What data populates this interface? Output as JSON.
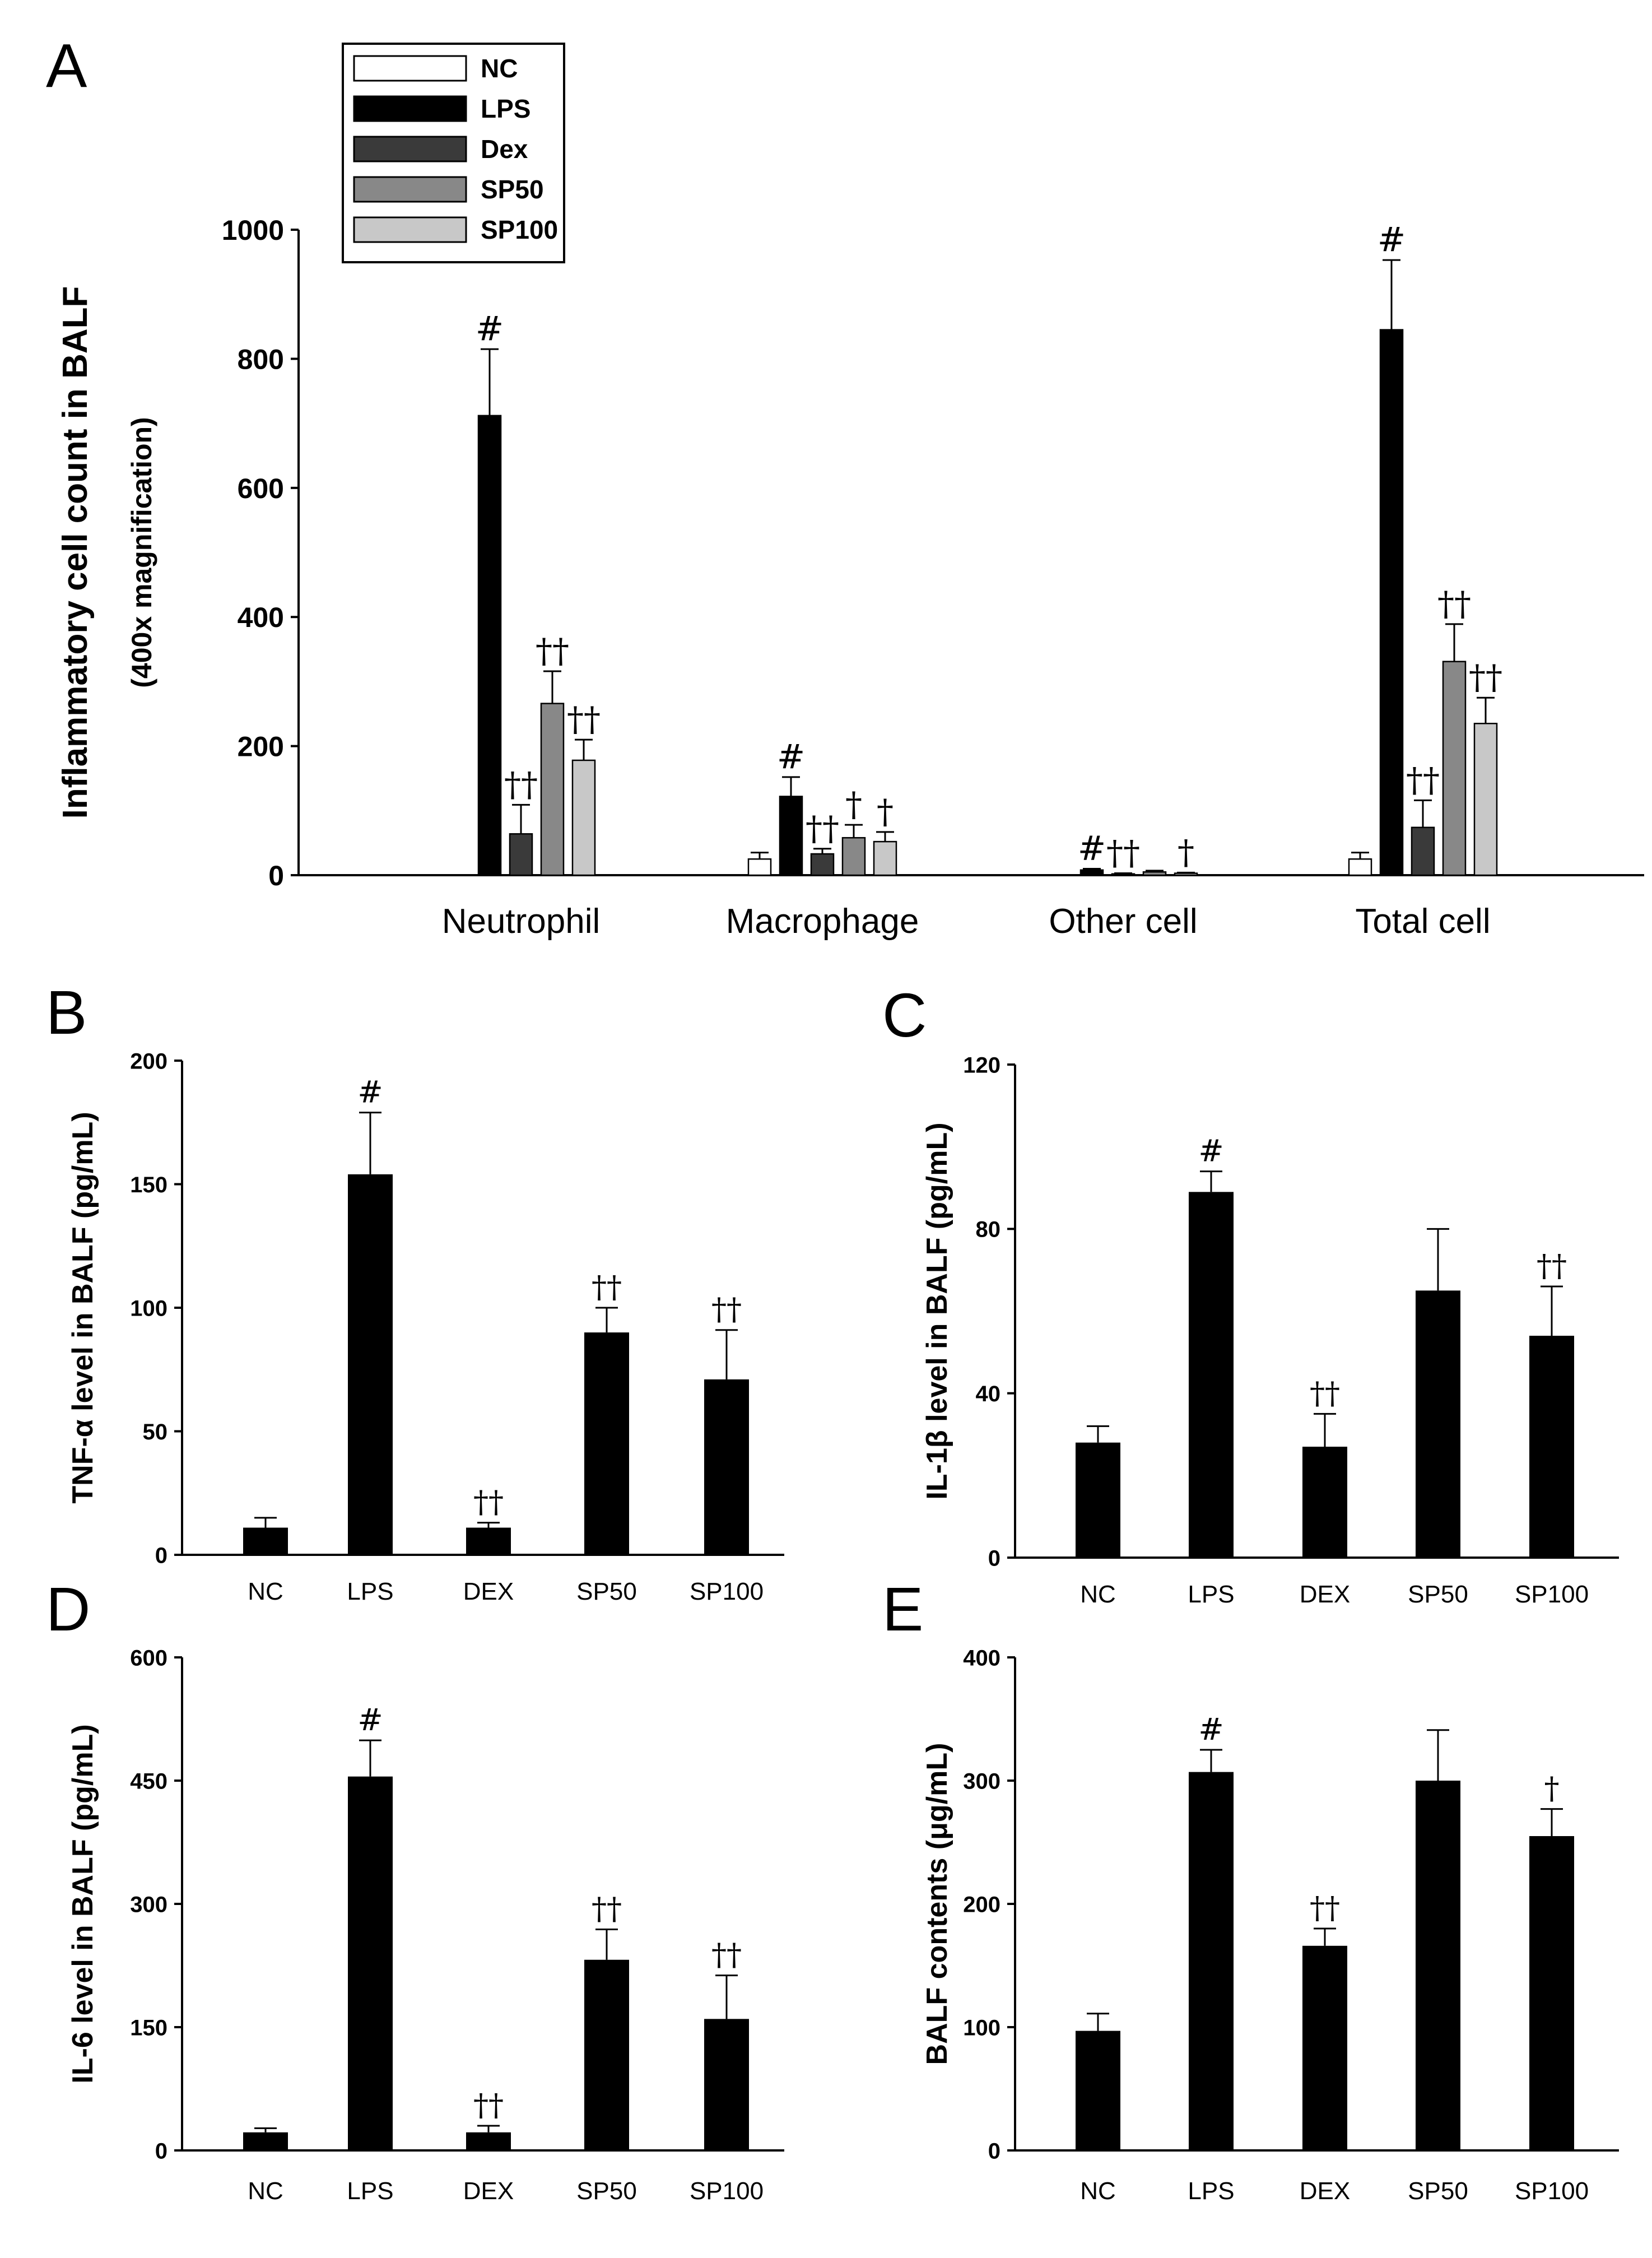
{
  "chart_data": [
    {
      "id": "A",
      "type": "bar",
      "panel_label": "A",
      "ylabel": "Inflammatory cell count in BALF",
      "ylabel2": "(400x magnification)",
      "ylim": [
        0,
        1000
      ],
      "yticks": [
        0,
        200,
        400,
        600,
        800,
        1000
      ],
      "categories": [
        "Neutrophil",
        "Macrophage",
        "Other cell",
        "Total cell"
      ],
      "legend": {
        "position": "top-left",
        "entries": [
          "NC",
          "LPS",
          "Dex",
          "SP50",
          "SP100"
        ]
      },
      "series": [
        {
          "name": "NC",
          "color": "#ffffff",
          "values": [
            0,
            25,
            0,
            25
          ],
          "errors": [
            0,
            10,
            0,
            10
          ],
          "marks": [
            "",
            "",
            "",
            ""
          ]
        },
        {
          "name": "LPS",
          "color": "#000000",
          "values": [
            712,
            122,
            8,
            845
          ],
          "errors": [
            103,
            30,
            2,
            108
          ],
          "marks": [
            "#",
            "#",
            "#",
            "#"
          ]
        },
        {
          "name": "Dex",
          "color": "#3a3a3a",
          "values": [
            64,
            33,
            2,
            74
          ],
          "errors": [
            45,
            8,
            1,
            42
          ],
          "marks": [
            "††",
            "††",
            "††",
            "††"
          ]
        },
        {
          "name": "SP50",
          "color": "#888888",
          "values": [
            266,
            58,
            5,
            331
          ],
          "errors": [
            50,
            20,
            2,
            58
          ],
          "marks": [
            "††",
            "†",
            "",
            "††"
          ]
        },
        {
          "name": "SP100",
          "color": "#c8c8c8",
          "values": [
            178,
            52,
            3,
            235
          ],
          "errors": [
            32,
            15,
            1,
            40
          ],
          "marks": [
            "††",
            "†",
            "†",
            "††"
          ]
        }
      ]
    },
    {
      "id": "B",
      "type": "bar",
      "panel_label": "B",
      "ylabel": "TNF-α level in BALF (pg/mL)",
      "ylim": [
        0,
        200
      ],
      "yticks": [
        0,
        50,
        100,
        150,
        200
      ],
      "categories": [
        "NC",
        "LPS",
        "DEX",
        "SP50",
        "SP100"
      ],
      "values": [
        11,
        154,
        11,
        90,
        71
      ],
      "errors": [
        4,
        25,
        2,
        10,
        20
      ],
      "marks": [
        "",
        "#",
        "††",
        "††",
        "††"
      ]
    },
    {
      "id": "C",
      "type": "bar",
      "panel_label": "C",
      "ylabel": "IL-1β level in BALF (pg/mL)",
      "ylim": [
        0,
        120
      ],
      "yticks": [
        0,
        40,
        80,
        120
      ],
      "categories": [
        "NC",
        "LPS",
        "DEX",
        "SP50",
        "SP100"
      ],
      "values": [
        28,
        89,
        27,
        65,
        54
      ],
      "errors": [
        4,
        5,
        8,
        15,
        12
      ],
      "marks": [
        "",
        "#",
        "††",
        "",
        "††"
      ]
    },
    {
      "id": "D",
      "type": "bar",
      "panel_label": "D",
      "ylabel": "IL-6 level in BALF (pg/mL)",
      "ylim": [
        0,
        600
      ],
      "yticks": [
        0,
        150,
        300,
        450,
        600
      ],
      "categories": [
        "NC",
        "LPS",
        "DEX",
        "SP50",
        "SP100"
      ],
      "values": [
        22,
        455,
        22,
        232,
        160
      ],
      "errors": [
        5,
        44,
        8,
        37,
        53
      ],
      "marks": [
        "",
        "#",
        "††",
        "††",
        "††"
      ]
    },
    {
      "id": "E",
      "type": "bar",
      "panel_label": "E",
      "ylabel": "BALF contents (μg/mL)",
      "ylim": [
        0,
        400
      ],
      "yticks": [
        0,
        100,
        200,
        300,
        400
      ],
      "categories": [
        "NC",
        "LPS",
        "DEX",
        "SP50",
        "SP100"
      ],
      "values": [
        97,
        307,
        166,
        300,
        255
      ],
      "errors": [
        14,
        18,
        14,
        41,
        22
      ],
      "marks": [
        "",
        "#",
        "††",
        "",
        "†"
      ]
    }
  ]
}
